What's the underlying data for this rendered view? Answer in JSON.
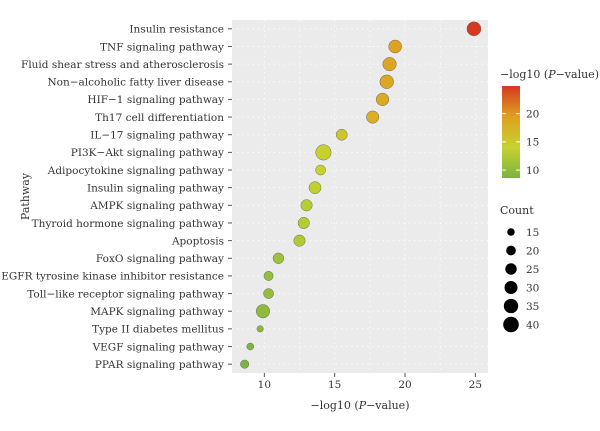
{
  "chart_data": {
    "type": "scatter",
    "xlabel_prefix": "−log10 (",
    "xlabel_italic": "P",
    "xlabel_suffix": "−value)",
    "ylabel": "Pathway",
    "xlim": [
      7.7,
      25.9
    ],
    "x_ticks": [
      10,
      15,
      20,
      25
    ],
    "grid": true,
    "categories": [
      "Insulin resistance",
      "TNF signaling pathway",
      "Fluid shear stress and atherosclerosis",
      "Non−alcoholic fatty liver disease",
      "HIF−1 signaling pathway",
      "Th17 cell differentiation",
      "IL−17 signaling pathway",
      "PI3K−Akt signaling pathway",
      "Adipocytokine signaling pathway",
      "Insulin signaling pathway",
      "AMPK signaling pathway",
      "Thyroid hormone signaling pathway",
      "Apoptosis",
      "FoxO signaling pathway",
      "EGFR tyrosine kinase inhibitor resistance",
      "Toll−like receptor signaling pathway",
      "MAPK signaling pathway",
      "Type II diabetes mellitus",
      "VEGF signaling pathway",
      "PPAR signaling pathway"
    ],
    "points": [
      {
        "pathway": "Insulin resistance",
        "x": 24.9,
        "count": 34
      },
      {
        "pathway": "TNF signaling pathway",
        "x": 19.3,
        "count": 30
      },
      {
        "pathway": "Fluid shear stress and atherosclerosis",
        "x": 18.9,
        "count": 32
      },
      {
        "pathway": "Non−alcoholic fatty liver disease",
        "x": 18.7,
        "count": 33
      },
      {
        "pathway": "HIF−1 signaling pathway",
        "x": 18.4,
        "count": 29
      },
      {
        "pathway": "Th17 cell differentiation",
        "x": 17.7,
        "count": 28
      },
      {
        "pathway": "IL−17 signaling pathway",
        "x": 15.5,
        "count": 24
      },
      {
        "pathway": "PI3K−Akt signaling pathway",
        "x": 14.2,
        "count": 40
      },
      {
        "pathway": "Adipocytokine signaling pathway",
        "x": 14.0,
        "count": 21
      },
      {
        "pathway": "Insulin signaling pathway",
        "x": 13.6,
        "count": 27
      },
      {
        "pathway": "AMPK signaling pathway",
        "x": 13.0,
        "count": 25
      },
      {
        "pathway": "Thyroid hormone signaling pathway",
        "x": 12.8,
        "count": 25
      },
      {
        "pathway": "Apoptosis",
        "x": 12.5,
        "count": 25
      },
      {
        "pathway": "FoxO signaling pathway",
        "x": 11.0,
        "count": 23
      },
      {
        "pathway": "EGFR tyrosine kinase inhibitor resistance",
        "x": 10.3,
        "count": 19
      },
      {
        "pathway": "Toll−like receptor signaling pathway",
        "x": 10.3,
        "count": 21
      },
      {
        "pathway": "MAPK signaling pathway",
        "x": 9.9,
        "count": 32
      },
      {
        "pathway": "Type II diabetes mellitus",
        "x": 9.7,
        "count": 13
      },
      {
        "pathway": "VEGF signaling pathway",
        "x": 9.0,
        "count": 14
      },
      {
        "pathway": "PPAR signaling pathway",
        "x": 8.6,
        "count": 17
      }
    ],
    "color_legend": {
      "title_prefix": "−log10 (",
      "title_italic": "P",
      "title_suffix": "−value)",
      "range": [
        8.6,
        24.9
      ],
      "ticks": [
        10,
        15,
        20
      ],
      "colors": [
        "#7cb342",
        "#c6d230",
        "#e0a020",
        "#d43a20"
      ]
    },
    "size_legend": {
      "title": "Count",
      "values": [
        15,
        20,
        25,
        30,
        35,
        40
      ]
    },
    "count_range": [
      10,
      40
    ],
    "colors": {
      "panel_bg": "#ebebeb",
      "grid": "#ffffff",
      "outline": "#555555"
    }
  }
}
